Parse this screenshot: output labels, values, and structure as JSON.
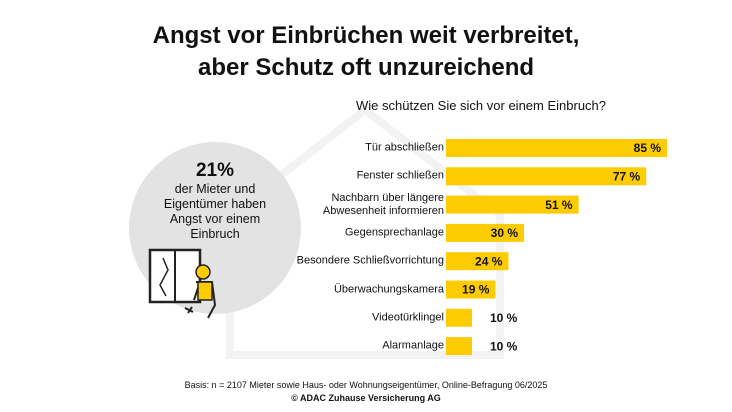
{
  "chart_data": {
    "type": "bar",
    "title": "Angst vor Einbrüchen weit verbreitet,\naber Schutz oft unzureichend",
    "subtitle": "Wie schützen Sie sich vor einem Einbruch?",
    "categories": [
      "Tür abschließen",
      "Fenster schließen",
      "Nachbarn über längere\nAbwesenheit informieren",
      "Gegensprechanlage",
      "Besondere Schließvorrichtung",
      "Überwachungskamera",
      "Videotürklingel",
      "Alarmanlage"
    ],
    "values": [
      85,
      77,
      51,
      30,
      24,
      19,
      10,
      10
    ],
    "value_labels": [
      "85 %",
      "77 %",
      "51 %",
      "30 %",
      "24 %",
      "19 %",
      "10 %",
      "10 %"
    ],
    "color": "#fdcc00",
    "callout": {
      "value_label": "21%",
      "text": "der Mieter und\nEigentümer haben\nAngst vor einem\nEinbruch"
    },
    "source": "Basis: n = 2107 Mieter sowie Haus- oder Wohnungseigentümer, Online-Befragung 06/2025",
    "copyright": "© ADAC Zuhause Versicherung AG"
  }
}
